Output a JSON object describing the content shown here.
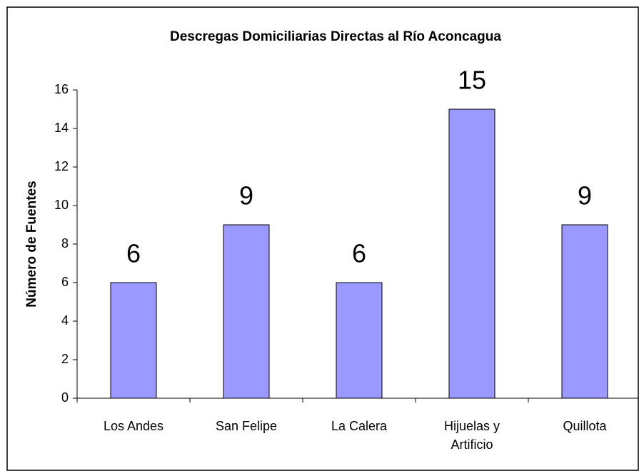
{
  "chart_data": {
    "type": "bar",
    "title": "Descregas Domiciliarias Directas al Río Aconcagua",
    "y_label": "Número de Fuentes",
    "categories": [
      "Los Andes",
      "San Felipe",
      "La Calera",
      "Hijuelas y Artificio",
      "Quillota"
    ],
    "values": [
      6,
      9,
      6,
      15,
      9
    ],
    "color": "#9999ff",
    "ylim": [
      0,
      16
    ],
    "yticks": [
      0,
      2,
      4,
      6,
      8,
      10,
      12,
      14,
      16
    ],
    "grid": false
  }
}
